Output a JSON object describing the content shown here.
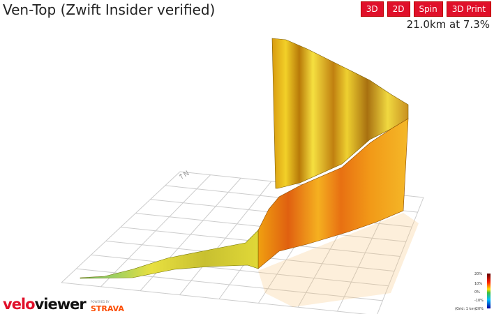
{
  "header": {
    "title": "Ven-Top (Zwift Insider verified)",
    "buttons": [
      "3D",
      "2D",
      "Spin",
      "3D Print"
    ],
    "summary": "21.0km at 7.3%"
  },
  "legend": {
    "labels": [
      "20%",
      "10%",
      "0%",
      "-10%",
      "-20%"
    ],
    "grid_note": "(Grid: 1 km)"
  },
  "footer": {
    "logo": "veloviewer",
    "powered_by": "POWERED BY",
    "partner": "STRAVA"
  }
}
